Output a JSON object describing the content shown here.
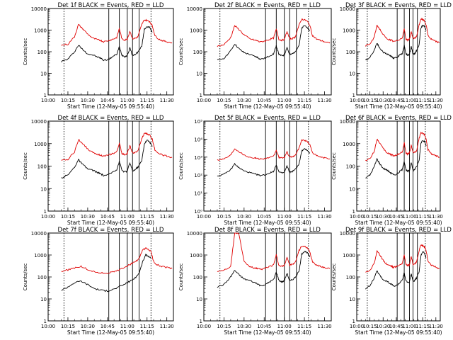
{
  "figure": {
    "xlabel": "Start Time (12-May-05 09:55:40)",
    "ylabel": "Counts/sec",
    "x_ticks": [
      "10:00",
      "10:15",
      "10:30",
      "10:45",
      "11:00",
      "11:15",
      "11:30"
    ],
    "x_tick_minutes": [
      0,
      15,
      30,
      45,
      60,
      75,
      90
    ],
    "xlim_minutes_after_10_00": [
      0,
      95
    ],
    "yscale": "log",
    "ylim": [
      1,
      10000
    ],
    "y_ticks_plain": [
      "1",
      "10",
      "100",
      "1000",
      "10000"
    ],
    "colors": {
      "events": "#000000",
      "lld": "#e00000",
      "frame": "#000000"
    },
    "solid_markers_minutes": [
      46,
      54,
      60,
      64,
      69
    ],
    "dotted_markers_minutes": [
      12,
      78
    ]
  },
  "chart_data": [
    {
      "type": "line",
      "title": "Det 1f BLACK = Events, RED = LLD",
      "yscale": "log",
      "ylim": [
        1,
        10000
      ],
      "tick_style": "plain",
      "x": [
        10,
        15,
        20,
        23,
        26,
        30,
        34,
        38,
        40,
        42,
        46,
        49,
        52,
        54,
        56,
        58,
        60,
        62,
        64,
        66,
        68,
        71,
        73,
        75,
        77,
        79,
        81,
        84,
        87,
        90,
        94
      ],
      "series": [
        {
          "name": "Events",
          "color": "#000000",
          "values": [
            35,
            45,
            100,
            200,
            130,
            80,
            70,
            55,
            50,
            40,
            45,
            60,
            75,
            170,
            70,
            60,
            65,
            150,
            65,
            75,
            95,
            180,
            1100,
            1500,
            1300,
            800,
            null,
            null,
            null,
            null,
            null
          ]
        },
        {
          "name": "LLD",
          "color": "#e00000",
          "values": [
            200,
            220,
            500,
            1800,
            1200,
            650,
            420,
            350,
            330,
            290,
            330,
            380,
            450,
            1200,
            380,
            350,
            380,
            900,
            400,
            420,
            480,
            1800,
            3000,
            2800,
            2500,
            1600,
            550,
            380,
            320,
            290,
            260
          ]
        }
      ]
    },
    {
      "type": "line",
      "title": "Det 2f BLACK = Events, RED = LLD",
      "yscale": "log",
      "ylim": [
        1,
        10000
      ],
      "tick_style": "plain",
      "x": [
        10,
        15,
        20,
        23,
        26,
        30,
        34,
        38,
        40,
        42,
        46,
        49,
        52,
        54,
        56,
        58,
        60,
        62,
        64,
        66,
        68,
        71,
        73,
        75,
        77,
        79,
        81,
        84,
        87,
        90,
        94
      ],
      "series": [
        {
          "name": "Events",
          "color": "#000000",
          "values": [
            40,
            50,
            110,
            230,
            140,
            90,
            75,
            60,
            55,
            45,
            50,
            65,
            80,
            190,
            75,
            65,
            70,
            160,
            70,
            80,
            100,
            200,
            1200,
            1600,
            1400,
            900,
            null,
            null,
            null,
            null,
            null
          ]
        },
        {
          "name": "LLD",
          "color": "#e00000",
          "values": [
            180,
            210,
            450,
            1600,
            1100,
            600,
            400,
            340,
            320,
            280,
            320,
            370,
            430,
            1100,
            370,
            340,
            370,
            850,
            390,
            410,
            470,
            1700,
            3200,
            3000,
            2600,
            1700,
            560,
            390,
            330,
            290,
            250
          ]
        }
      ]
    },
    {
      "type": "line",
      "title": "Det 3f BLACK = Events, RED = LLD",
      "yscale": "log",
      "ylim": [
        1,
        10000
      ],
      "tick_style": "plain",
      "x": [
        10,
        15,
        20,
        23,
        26,
        30,
        34,
        38,
        40,
        42,
        46,
        49,
        52,
        54,
        56,
        58,
        60,
        62,
        64,
        66,
        68,
        71,
        73,
        75,
        77,
        79,
        81,
        84,
        87,
        90,
        94
      ],
      "series": [
        {
          "name": "Events",
          "color": "#000000",
          "values": [
            40,
            55,
            120,
            260,
            150,
            95,
            80,
            65,
            60,
            50,
            55,
            70,
            85,
            200,
            80,
            70,
            75,
            170,
            75,
            85,
            110,
            220,
            1300,
            1700,
            1500,
            950,
            null,
            null,
            null,
            null,
            null
          ]
        },
        {
          "name": "LLD",
          "color": "#e00000",
          "values": [
            190,
            220,
            480,
            1700,
            1150,
            620,
            410,
            350,
            330,
            290,
            330,
            380,
            440,
            1150,
            380,
            350,
            380,
            880,
            400,
            420,
            480,
            1750,
            3300,
            3100,
            2700,
            1750,
            580,
            400,
            340,
            300,
            260
          ]
        }
      ]
    },
    {
      "type": "line",
      "title": "Det 4f BLACK = Events, RED = LLD",
      "yscale": "log",
      "ylim": [
        1,
        10000
      ],
      "tick_style": "plain",
      "x": [
        10,
        15,
        20,
        23,
        26,
        30,
        34,
        38,
        40,
        42,
        46,
        49,
        52,
        54,
        56,
        58,
        60,
        62,
        64,
        66,
        68,
        71,
        73,
        75,
        77,
        79,
        81,
        84,
        87,
        90,
        94
      ],
      "series": [
        {
          "name": "Events",
          "color": "#000000",
          "values": [
            30,
            40,
            90,
            190,
            120,
            75,
            65,
            50,
            45,
            38,
            42,
            55,
            70,
            160,
            65,
            55,
            60,
            140,
            60,
            70,
            90,
            170,
            1000,
            1400,
            1200,
            750,
            null,
            null,
            null,
            null,
            null
          ]
        },
        {
          "name": "LLD",
          "color": "#e00000",
          "values": [
            170,
            200,
            430,
            1500,
            1050,
            580,
            390,
            330,
            310,
            270,
            310,
            360,
            420,
            1050,
            360,
            330,
            360,
            820,
            380,
            400,
            460,
            1650,
            2900,
            2700,
            2400,
            1550,
            530,
            370,
            310,
            280,
            240
          ]
        }
      ]
    },
    {
      "type": "line",
      "title": "Det 5f BLACK = Events, RED = LLD",
      "yscale": "log",
      "ylim": [
        1,
        100000
      ],
      "tick_style": "power",
      "y_ticks_power": [
        "10⁰",
        "10¹",
        "10²",
        "10³",
        "10⁴",
        "10⁵"
      ],
      "x": [
        10,
        15,
        20,
        23,
        26,
        30,
        34,
        38,
        40,
        42,
        46,
        49,
        52,
        54,
        56,
        58,
        60,
        62,
        64,
        66,
        68,
        71,
        73,
        75,
        77,
        79,
        81,
        84,
        87,
        90,
        94
      ],
      "series": [
        {
          "name": "Events",
          "color": "#000000",
          "values": [
            90,
            110,
            200,
            420,
            260,
            170,
            140,
            115,
            105,
            95,
            105,
            130,
            160,
            380,
            150,
            130,
            140,
            320,
            140,
            160,
            200,
            420,
            2200,
            2800,
            2500,
            1600,
            null,
            null,
            null,
            null,
            null
          ]
        },
        {
          "name": "LLD",
          "color": "#e00000",
          "values": [
            700,
            800,
            1300,
            3000,
            2100,
            1300,
            1000,
            900,
            850,
            780,
            850,
            950,
            1100,
            2400,
            950,
            900,
            950,
            1900,
            1000,
            1050,
            1200,
            3200,
            9000,
            8500,
            7500,
            5000,
            1800,
            1200,
            1000,
            900,
            800
          ]
        }
      ]
    },
    {
      "type": "line",
      "title": "Det 6f BLACK = Events, RED = LLD",
      "yscale": "log",
      "ylim": [
        1,
        10000
      ],
      "tick_style": "plain",
      "x": [
        10,
        15,
        20,
        23,
        26,
        30,
        34,
        38,
        40,
        42,
        46,
        49,
        52,
        54,
        56,
        58,
        60,
        62,
        64,
        66,
        68,
        71,
        73,
        75,
        77,
        79,
        81,
        84,
        87,
        90,
        94
      ],
      "series": [
        {
          "name": "Events",
          "color": "#000000",
          "values": [
            30,
            40,
            95,
            210,
            130,
            80,
            68,
            52,
            48,
            40,
            45,
            58,
            72,
            170,
            68,
            58,
            63,
            150,
            63,
            72,
            92,
            180,
            1050,
            1450,
            1250,
            780,
            null,
            null,
            null,
            null,
            null
          ]
        },
        {
          "name": "LLD",
          "color": "#e00000",
          "values": [
            180,
            210,
            460,
            1600,
            1100,
            600,
            400,
            340,
            320,
            280,
            320,
            370,
            430,
            1100,
            370,
            340,
            370,
            860,
            390,
            410,
            470,
            1700,
            3000,
            2800,
            2500,
            1600,
            540,
            380,
            320,
            290,
            250
          ]
        }
      ]
    },
    {
      "type": "line",
      "title": "Det 7f BLACK = Events, RED = LLD",
      "yscale": "log",
      "ylim": [
        1,
        10000
      ],
      "tick_style": "plain",
      "x": [
        10,
        15,
        20,
        25,
        30,
        35,
        40,
        45,
        50,
        55,
        60,
        63,
        66,
        69,
        72,
        74,
        76,
        78,
        80,
        82,
        86,
        90,
        94
      ],
      "series": [
        {
          "name": "Events",
          "color": "#000000",
          "values": [
            25,
            35,
            55,
            65,
            45,
            30,
            25,
            23,
            28,
            38,
            55,
            70,
            90,
            150,
            550,
            1000,
            900,
            700,
            null,
            null,
            null,
            null,
            null
          ]
        },
        {
          "name": "LLD",
          "color": "#e00000",
          "values": [
            180,
            210,
            260,
            300,
            220,
            170,
            150,
            150,
            170,
            230,
            320,
            400,
            480,
            700,
            1800,
            2000,
            1800,
            1400,
            500,
            380,
            300,
            270,
            240
          ]
        }
      ]
    },
    {
      "type": "line",
      "title": "Det 8f BLACK = Events, RED = LLD",
      "yscale": "log",
      "ylim": [
        1,
        10000
      ],
      "tick_style": "plain",
      "x": [
        10,
        15,
        20,
        23,
        26,
        30,
        34,
        38,
        40,
        42,
        46,
        49,
        52,
        54,
        56,
        58,
        60,
        62,
        64,
        66,
        68,
        71,
        73,
        75,
        77,
        79,
        81,
        84,
        87,
        90,
        94
      ],
      "series": [
        {
          "name": "Events",
          "color": "#000000",
          "values": [
            35,
            45,
            100,
            200,
            130,
            80,
            70,
            55,
            50,
            40,
            45,
            60,
            75,
            170,
            70,
            60,
            65,
            150,
            65,
            75,
            95,
            180,
            1100,
            1500,
            1300,
            800,
            null,
            null,
            null,
            null,
            null
          ]
        },
        {
          "name": "LLD",
          "color": "#e00000",
          "values": [
            180,
            210,
            300,
            10000,
            10000,
            500,
            300,
            250,
            240,
            220,
            250,
            300,
            350,
            1000,
            330,
            300,
            330,
            800,
            350,
            370,
            430,
            1600,
            2600,
            2400,
            2100,
            1400,
            500,
            350,
            300,
            270,
            240
          ]
        }
      ]
    },
    {
      "type": "line",
      "title": "Det 9f BLACK = Events, RED = LLD",
      "yscale": "log",
      "ylim": [
        1,
        10000
      ],
      "tick_style": "plain",
      "x": [
        10,
        15,
        20,
        23,
        26,
        30,
        34,
        38,
        40,
        42,
        46,
        49,
        52,
        54,
        56,
        58,
        60,
        62,
        64,
        66,
        68,
        71,
        73,
        75,
        77,
        79,
        81,
        84,
        87,
        90,
        94
      ],
      "series": [
        {
          "name": "Events",
          "color": "#000000",
          "values": [
            30,
            40,
            90,
            190,
            120,
            75,
            65,
            50,
            45,
            38,
            42,
            55,
            70,
            160,
            65,
            55,
            60,
            140,
            60,
            70,
            90,
            170,
            1000,
            1400,
            1200,
            750,
            null,
            null,
            null,
            null,
            null
          ]
        },
        {
          "name": "LLD",
          "color": "#e00000",
          "values": [
            170,
            200,
            430,
            1500,
            1050,
            580,
            390,
            330,
            310,
            270,
            310,
            360,
            420,
            1050,
            360,
            330,
            360,
            820,
            380,
            400,
            460,
            1650,
            2900,
            2700,
            2400,
            1550,
            530,
            370,
            310,
            280,
            240
          ]
        }
      ]
    }
  ]
}
